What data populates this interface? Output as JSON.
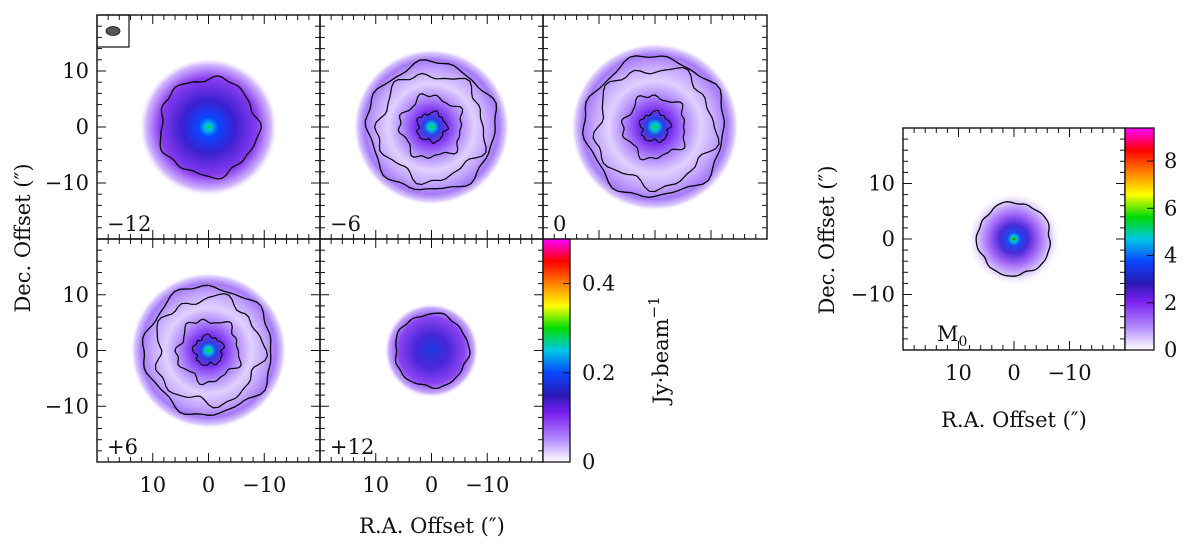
{
  "chart_data": [
    {
      "type": "heatmap",
      "panels": [
        {
          "label": "−12",
          "morph": "compact"
        },
        {
          "label": "−6",
          "morph": "ring"
        },
        {
          "label": "0",
          "morph": "ring-wide"
        },
        {
          "label": "+6",
          "morph": "ring"
        },
        {
          "label": "+12",
          "morph": "blob"
        }
      ],
      "xlabel": "R.A. Offset (″)",
      "ylabel": "Dec. Offset (″)",
      "xlim": [
        20,
        -20
      ],
      "ylim": [
        -20,
        20
      ],
      "xticks": [
        {
          "v": 10,
          "t": "10"
        },
        {
          "v": 0,
          "t": "0"
        },
        {
          "v": -10,
          "t": "−10"
        }
      ],
      "yticks": [
        {
          "v": 10,
          "t": "10"
        },
        {
          "v": 0,
          "t": "0"
        },
        {
          "v": -10,
          "t": "−10"
        }
      ],
      "colorbar": {
        "label": "Jy·beam",
        "label_sup": "−1",
        "range": [
          0,
          0.5
        ],
        "ticks": [
          {
            "v": 0,
            "t": "0"
          },
          {
            "v": 0.2,
            "t": "0.2"
          },
          {
            "v": 0.4,
            "t": "0.4"
          }
        ]
      },
      "colormap": [
        "#ffffff",
        "#b58cff",
        "#7a1ff0",
        "#2a1ab4",
        "#0a46ff",
        "#00c8e6",
        "#00dc00",
        "#ffff00",
        "#ff8000",
        "#ff0000",
        "#ff00ff"
      ]
    },
    {
      "type": "heatmap",
      "panels": [
        {
          "label": "M",
          "label_sub": "0",
          "morph": "blob"
        }
      ],
      "xlabel": "R.A. Offset (″)",
      "ylabel": "Dec. Offset (″)",
      "xlim": [
        20,
        -20
      ],
      "ylim": [
        -20,
        20
      ],
      "xticks": [
        {
          "v": 10,
          "t": "10"
        },
        {
          "v": 0,
          "t": "0"
        },
        {
          "v": -10,
          "t": "−10"
        }
      ],
      "yticks": [
        {
          "v": 10,
          "t": "10"
        },
        {
          "v": 0,
          "t": "0"
        },
        {
          "v": -10,
          "t": "−10"
        }
      ],
      "colorbar": {
        "range": [
          0,
          9.4
        ],
        "ticks": [
          {
            "v": 0,
            "t": "0"
          },
          {
            "v": 2,
            "t": "2"
          },
          {
            "v": 4,
            "t": "4"
          },
          {
            "v": 6,
            "t": "6"
          },
          {
            "v": 8,
            "t": "8"
          }
        ]
      }
    }
  ]
}
